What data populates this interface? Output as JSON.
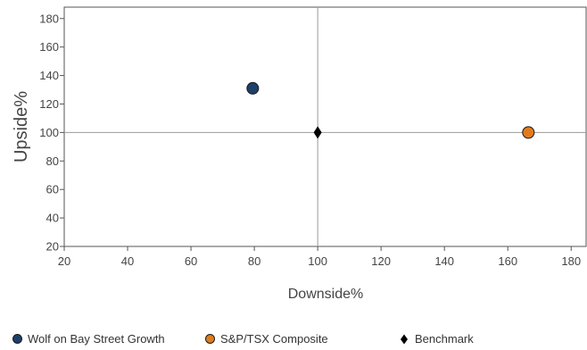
{
  "chart_data": {
    "type": "scatter",
    "xlabel": "Downside%",
    "ylabel": "Upside%",
    "xlim": [
      20,
      185
    ],
    "ylim": [
      20,
      188
    ],
    "xticks": [
      20,
      40,
      60,
      80,
      100,
      120,
      140,
      160,
      180
    ],
    "yticks": [
      20,
      40,
      60,
      80,
      100,
      120,
      140,
      160,
      180
    ],
    "reference_lines": {
      "x": 100,
      "y": 100
    },
    "grid": false,
    "legend_position": "bottom",
    "series": [
      {
        "name": "Wolf on Bay Street Growth",
        "marker": "circle",
        "color": "#1f3f6b",
        "points": [
          {
            "x": 79.5,
            "y": 131
          }
        ]
      },
      {
        "name": "S&P/TSX Composite",
        "marker": "circle",
        "color": "#e07b1e",
        "points": [
          {
            "x": 166.5,
            "y": 100
          }
        ]
      },
      {
        "name": "Benchmark",
        "marker": "diamond",
        "color": "#000000",
        "points": [
          {
            "x": 100,
            "y": 100
          }
        ]
      }
    ]
  },
  "legend": {
    "items": [
      {
        "label": "Wolf on Bay Street Growth"
      },
      {
        "label": "S&P/TSX Composite"
      },
      {
        "label": "Benchmark"
      }
    ]
  }
}
